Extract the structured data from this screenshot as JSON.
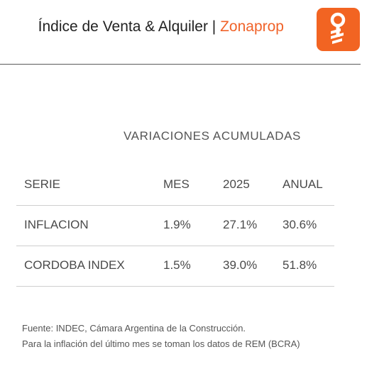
{
  "header": {
    "title": "Índice de Venta & Alquiler | ",
    "brand": "Zonaprop",
    "logo_icon": "zonaprop-key-logo",
    "brand_color": "#f26422"
  },
  "table": {
    "title": "VARIACIONES ACUMULADAS",
    "columns": [
      "SERIE",
      "MES",
      "2025",
      "ANUAL"
    ],
    "rows": [
      [
        "INFLACION",
        "1.9%",
        "27.1%",
        "30.6%"
      ],
      [
        "CORDOBA INDEX",
        "1.5%",
        "39.0%",
        "51.8%"
      ]
    ]
  },
  "footnote": {
    "line1": "Fuente: INDEC, Cámara Argentina de la Construcción.",
    "line2": "Para la inflación del último mes se toman los datos de REM (BCRA)"
  }
}
